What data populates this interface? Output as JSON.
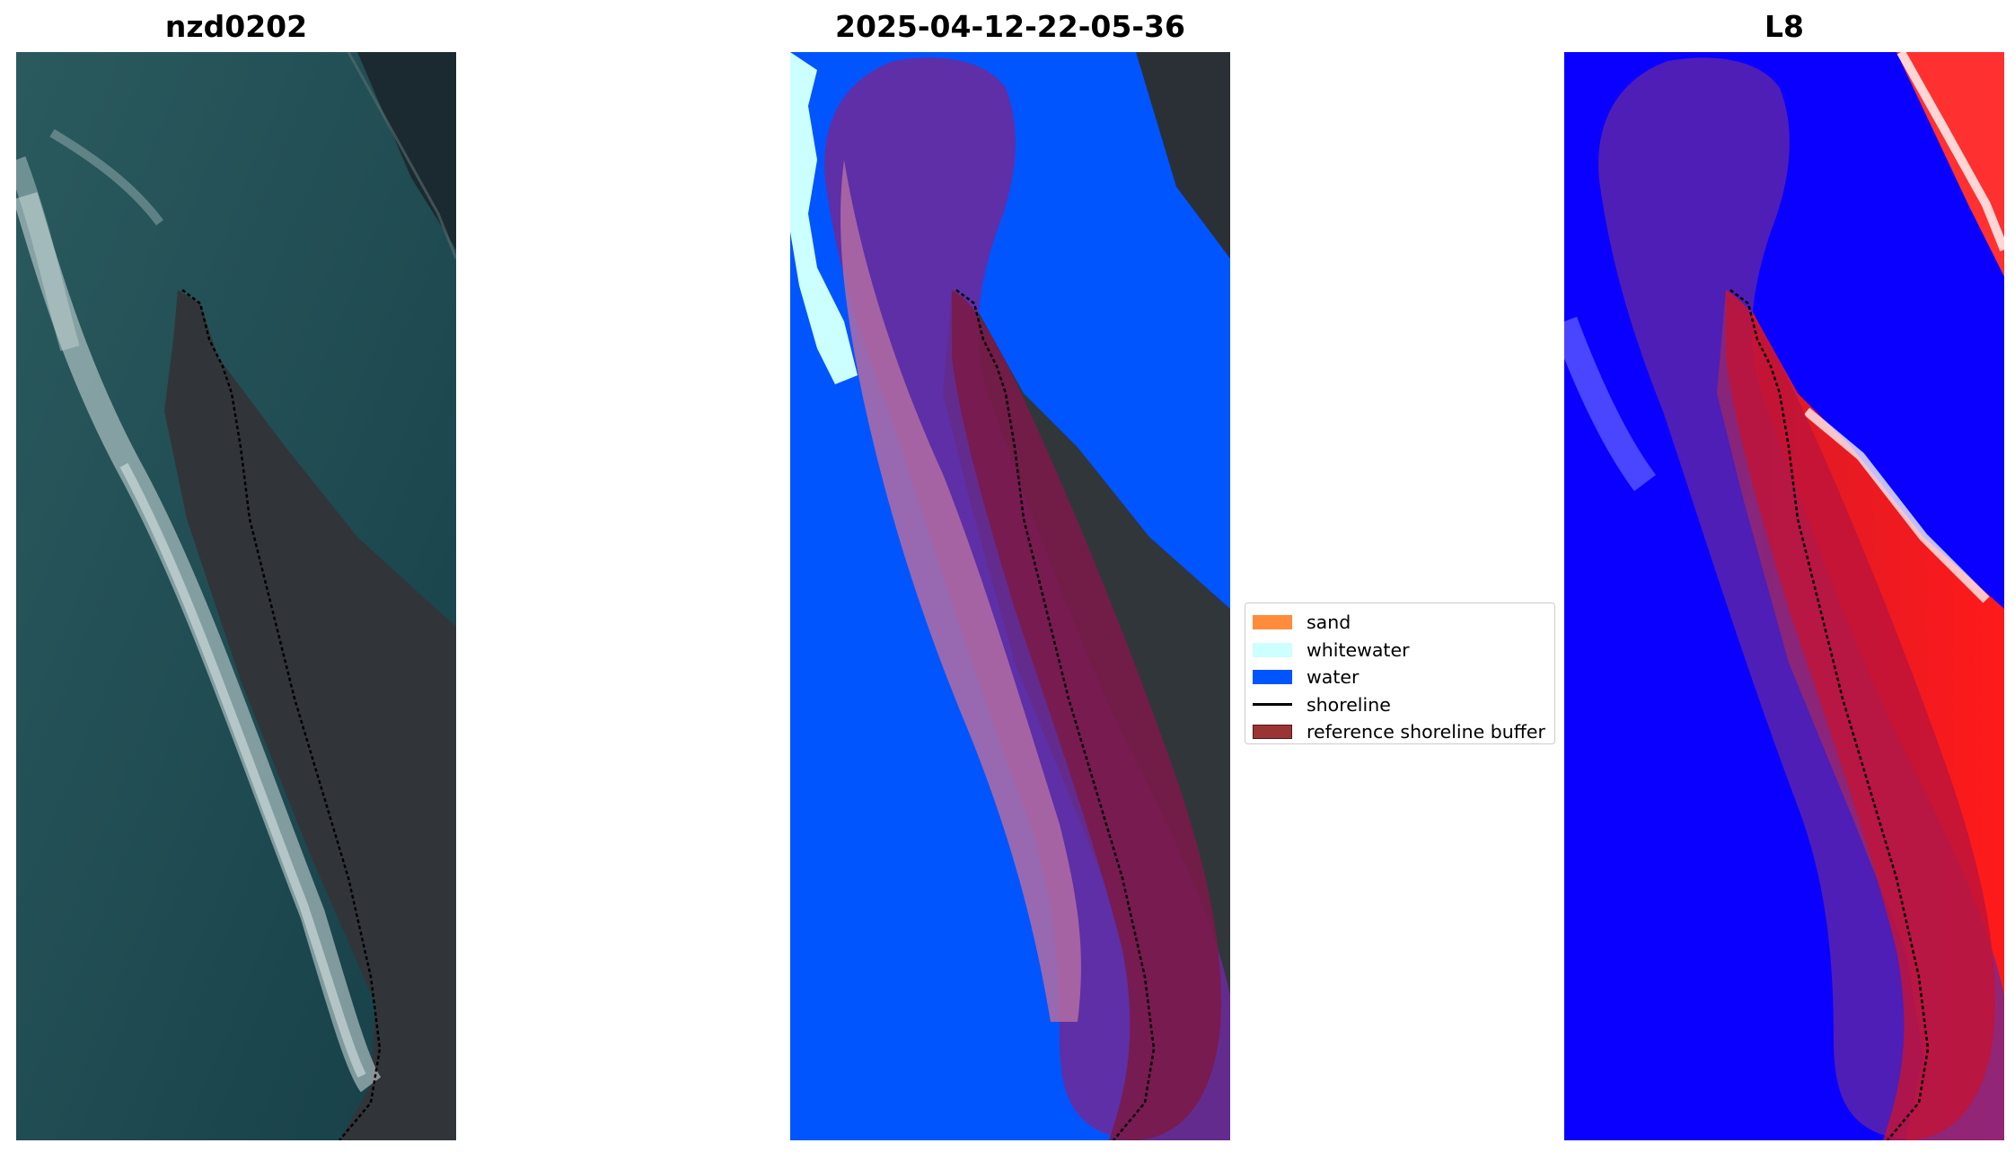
{
  "panels": [
    {
      "title": "nzd0202",
      "content": "satellite-rgb-image"
    },
    {
      "title": "2025-04-12-22-05-36",
      "content": "classified-image"
    },
    {
      "title": "L8",
      "content": "index-image"
    }
  ],
  "legend": {
    "items": [
      {
        "label": "sand",
        "color": "#ff8c3a",
        "kind": "patch"
      },
      {
        "label": "whitewater",
        "color": "#ccffff",
        "kind": "patch"
      },
      {
        "label": "water",
        "color": "#0055ff",
        "kind": "patch"
      },
      {
        "label": "shoreline",
        "color": "#000000",
        "kind": "line"
      },
      {
        "label": "reference shoreline buffer",
        "color": "#9b3535",
        "kind": "patch"
      }
    ]
  },
  "colors": {
    "ocean": "#1d4a52",
    "land": "#2f3336",
    "surf": "#c8d6d6",
    "class_water": "#0055ff",
    "class_whitewater": "#ccffff",
    "buffer_overlay": "#8e1a6a",
    "index_low": "#0a00ff",
    "index_high": "#ff1a1a"
  }
}
